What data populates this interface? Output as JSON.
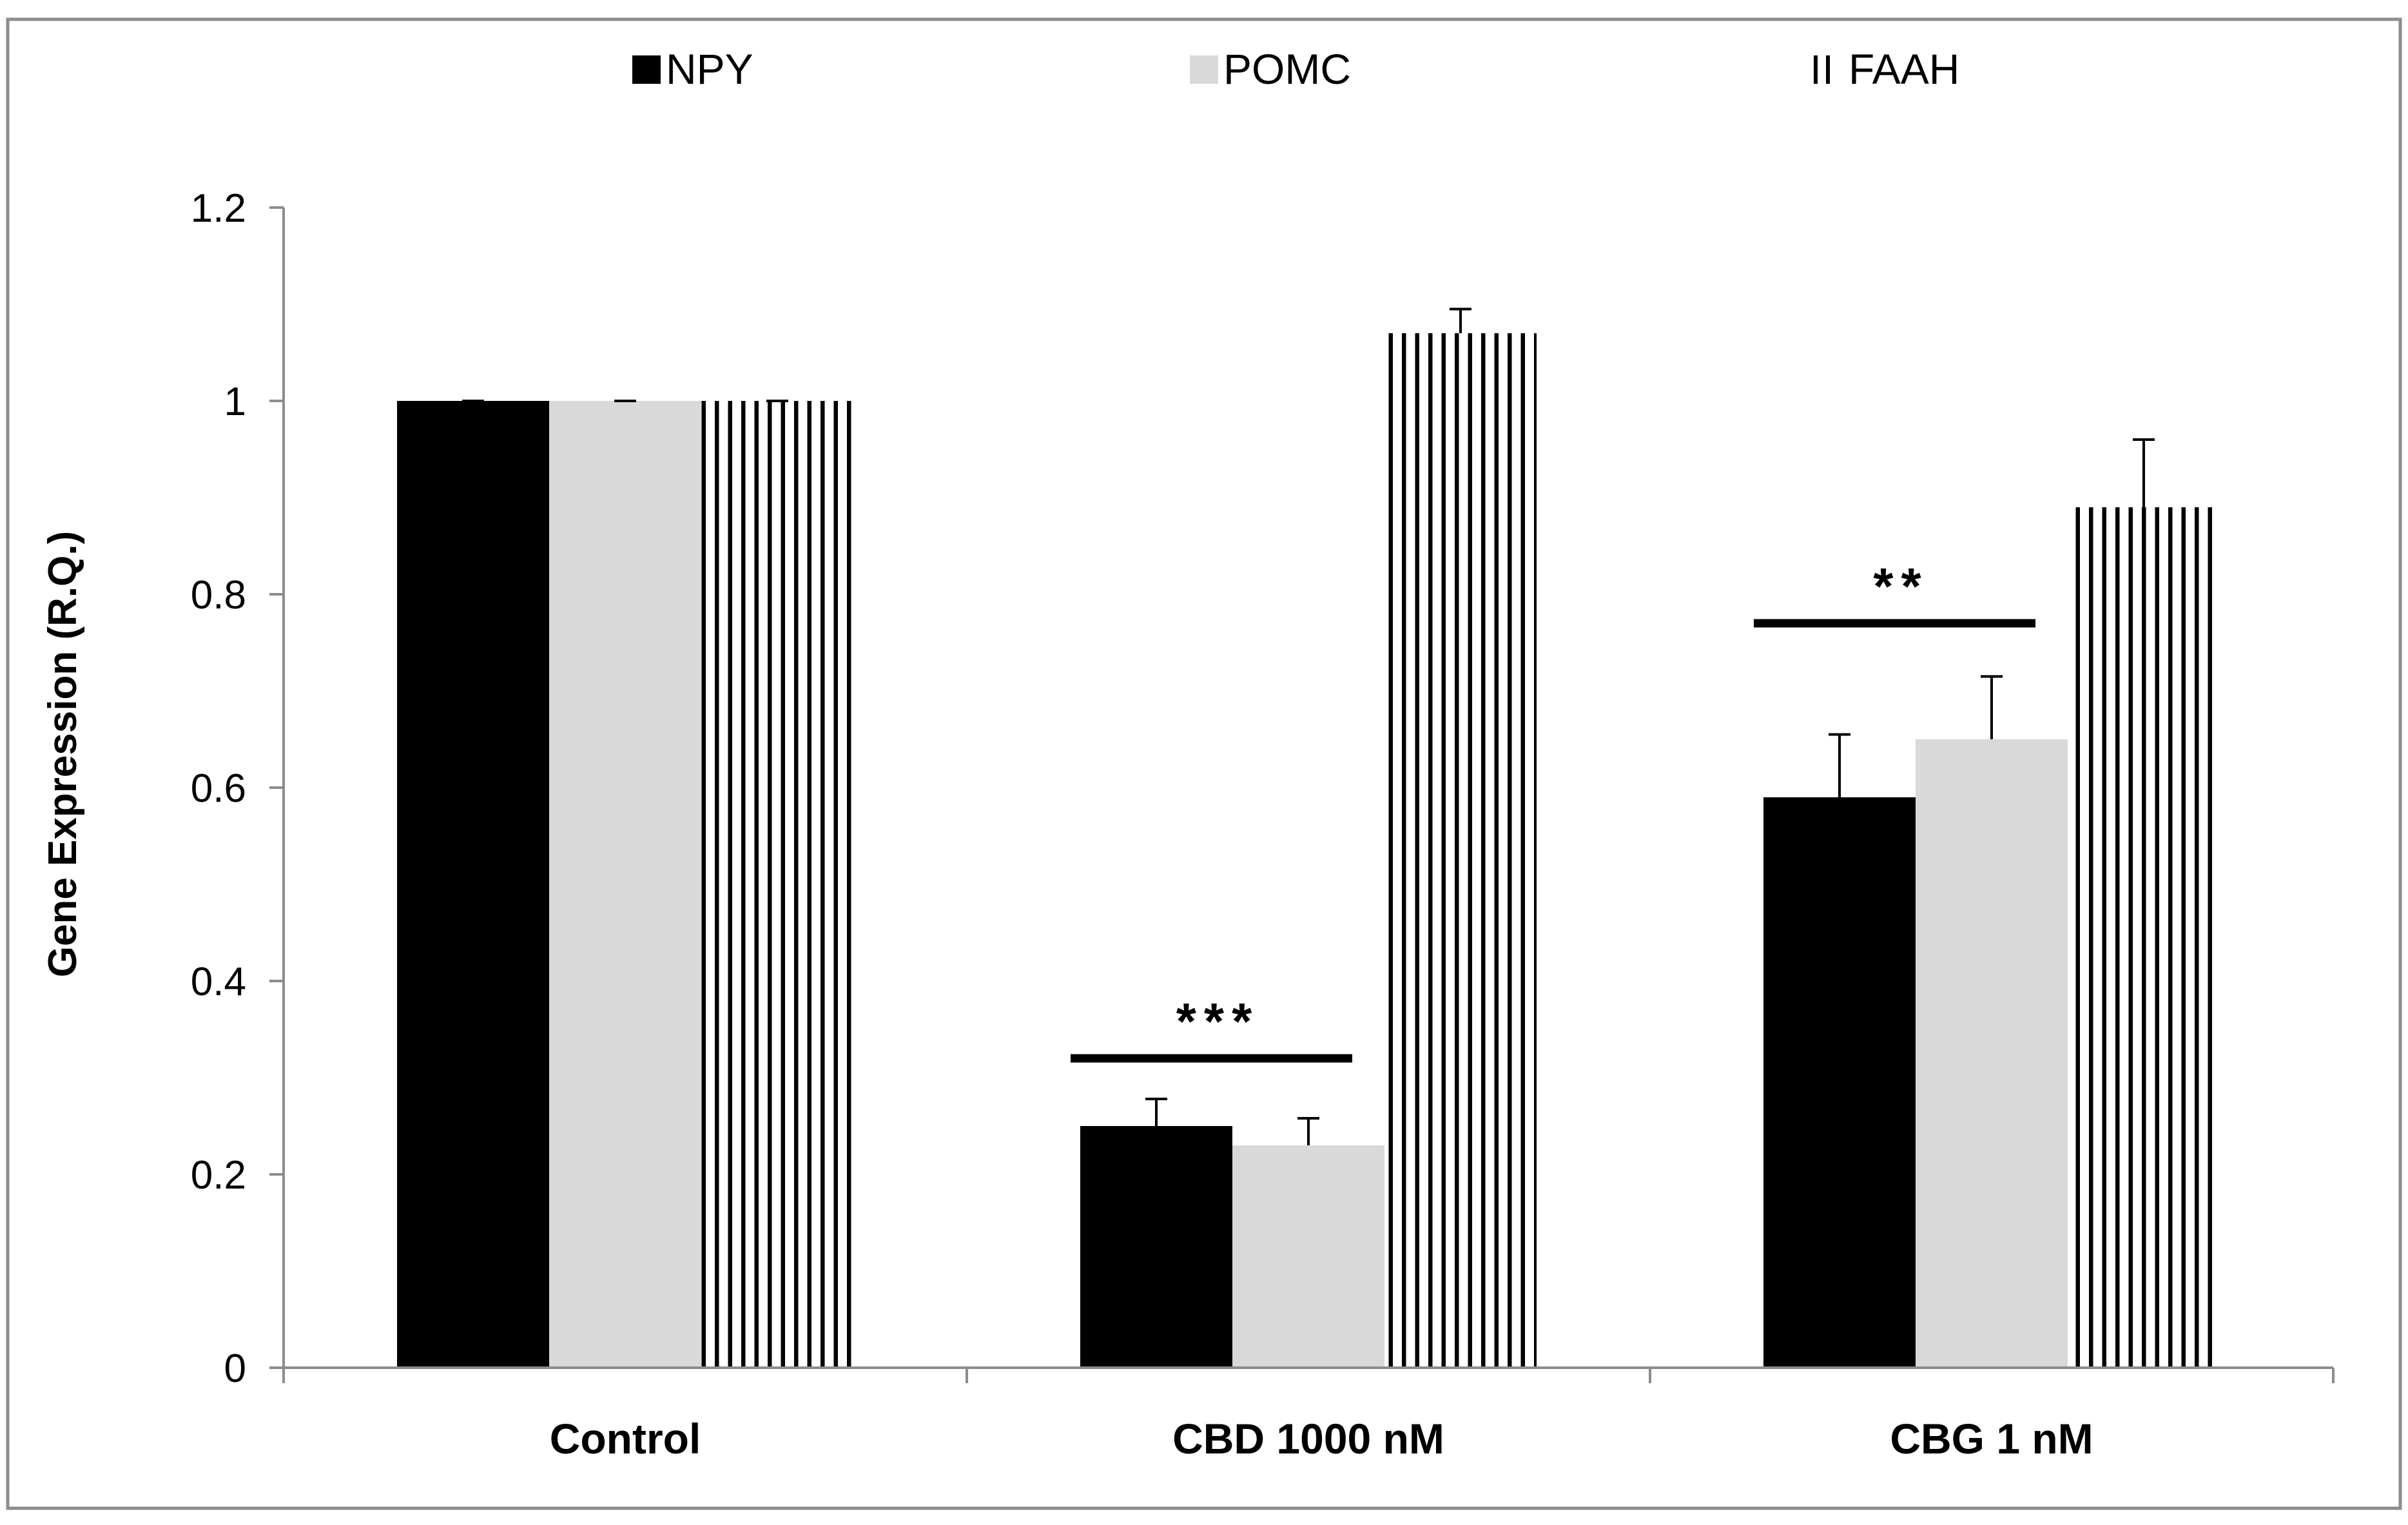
{
  "chart_data": {
    "type": "bar",
    "title": "",
    "xlabel": "",
    "ylabel": "Gene Expression (R.Q.)",
    "ylim": [
      0,
      1.2
    ],
    "yticks": [
      "0",
      "0.2",
      "0.4",
      "0.6",
      "0.8",
      "1",
      "1.2"
    ],
    "categories": [
      "Control",
      "CBD 1000 nM",
      "CBG 1 nM"
    ],
    "legend_position": "top",
    "series": [
      {
        "name": "NPY",
        "values": [
          1.0,
          0.25,
          0.59
        ],
        "errors": [
          0.0,
          0.028,
          0.065
        ],
        "color": "#000000",
        "pattern": "solid"
      },
      {
        "name": "POMC",
        "values": [
          1.0,
          0.23,
          0.65
        ],
        "errors": [
          0.0,
          0.028,
          0.065
        ],
        "color": "#d9d9d9",
        "pattern": "solid"
      },
      {
        "name": "FAAH",
        "values": [
          1.0,
          1.07,
          0.89
        ],
        "errors": [
          0.0,
          0.025,
          0.07
        ],
        "color": "#000000",
        "pattern": "vertical-stripes"
      }
    ],
    "annotations": [
      {
        "text": "***",
        "category": "CBD 1000 nM",
        "y": 0.32
      },
      {
        "text": "**",
        "category": "CBG 1 nM",
        "y": 0.77
      }
    ]
  }
}
